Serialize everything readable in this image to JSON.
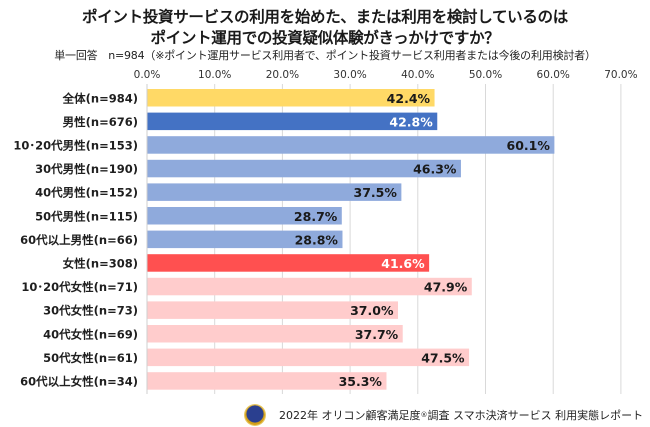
{
  "header": {
    "title_line1": "ポイント投資サービスの利用を始めた、または利用を検討しているのは",
    "title_line2": "ポイント運用での投資疑似体験がきっかけですか？",
    "subtitle": "単一回答　n=984（※ポイント運用サービス利用者で、ポイント投資サービス利用者または今後の利用検討者）"
  },
  "footer": {
    "badge_icon": "award-medal-icon",
    "text_before": "2022年 オリコン顧客満足度",
    "registered_mark": "®",
    "text_after": "調査  スマホ決済サービス  利用実態レポート"
  },
  "colors": {
    "total": "#FFD966",
    "male": "#4472C4",
    "male_sub": "#8FAADC",
    "female": "#FF5050",
    "female_sub": "#FFCCCC",
    "grid": "#D9D9D9"
  },
  "chart_data": {
    "type": "bar",
    "orientation": "horizontal",
    "title": "ポイント投資サービスの利用を始めた、または利用を検討しているのは ポイント運用での投資疑似体験がきっかけですか？",
    "xlabel": "",
    "ylabel": "",
    "xlim": [
      0,
      70
    ],
    "x_ticks": [
      "0.0%",
      "10.0%",
      "20.0%",
      "30.0%",
      "40.0%",
      "50.0%",
      "60.0%",
      "70.0%"
    ],
    "x_tick_values": [
      0,
      10,
      20,
      30,
      40,
      50,
      60,
      70
    ],
    "x_axis_position": "top",
    "grid": true,
    "legend": "none",
    "categories": [
      "全体(n=984)",
      "男性(n=676)",
      "10･20代男性(n=153)",
      "30代男性(n=190)",
      "40代男性(n=152)",
      "50代男性(n=115)",
      "60代以上男性(n=66)",
      "女性(n=308)",
      "10･20代女性(n=71)",
      "30代女性(n=73)",
      "40代女性(n=69)",
      "50代女性(n=61)",
      "60代以上女性(n=34)"
    ],
    "values": [
      42.4,
      42.8,
      60.1,
      46.3,
      37.5,
      28.7,
      28.8,
      41.6,
      47.9,
      37.0,
      37.7,
      47.5,
      35.3
    ],
    "value_labels": [
      "42.4%",
      "42.8%",
      "60.1%",
      "46.3%",
      "37.5%",
      "28.7%",
      "28.8%",
      "41.6%",
      "47.9%",
      "37.0%",
      "37.7%",
      "47.5%",
      "35.3%"
    ],
    "groups": [
      "total",
      "male",
      "male_sub",
      "male_sub",
      "male_sub",
      "male_sub",
      "male_sub",
      "female",
      "female_sub",
      "female_sub",
      "female_sub",
      "female_sub",
      "female_sub"
    ],
    "label_colors": {
      "total": "#1a1a1a",
      "male": "#ffffff",
      "male_sub": "#1a1a1a",
      "female": "#ffffff",
      "female_sub": "#1a1a1a"
    }
  }
}
